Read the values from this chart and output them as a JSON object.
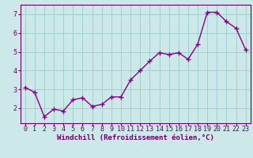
{
  "x": [
    0,
    1,
    2,
    3,
    4,
    5,
    6,
    7,
    8,
    9,
    10,
    11,
    12,
    13,
    14,
    15,
    16,
    17,
    18,
    19,
    20,
    21,
    22,
    23
  ],
  "y": [
    3.1,
    2.85,
    1.55,
    1.95,
    1.85,
    2.45,
    2.55,
    2.1,
    2.2,
    2.6,
    2.6,
    3.5,
    4.0,
    4.5,
    4.95,
    4.85,
    4.95,
    4.6,
    5.4,
    7.1,
    7.1,
    6.6,
    6.25,
    5.1
  ],
  "line_color": "#880088",
  "marker": "+",
  "marker_size": 4,
  "linewidth": 1.0,
  "bg_color": "#cce8e8",
  "plot_bg_color": "#cce8e8",
  "grid_color": "#99cccc",
  "xlabel": "Windchill (Refroidissement éolien,°C)",
  "xlim": [
    -0.5,
    23.5
  ],
  "ylim": [
    1.2,
    7.5
  ],
  "yticks": [
    2,
    3,
    4,
    5,
    6,
    7
  ],
  "xticks": [
    0,
    1,
    2,
    3,
    4,
    5,
    6,
    7,
    8,
    9,
    10,
    11,
    12,
    13,
    14,
    15,
    16,
    17,
    18,
    19,
    20,
    21,
    22,
    23
  ],
  "xlabel_fontsize": 6.5,
  "tick_fontsize": 6.0,
  "axis_color": "#660066",
  "spine_color": "#660066"
}
